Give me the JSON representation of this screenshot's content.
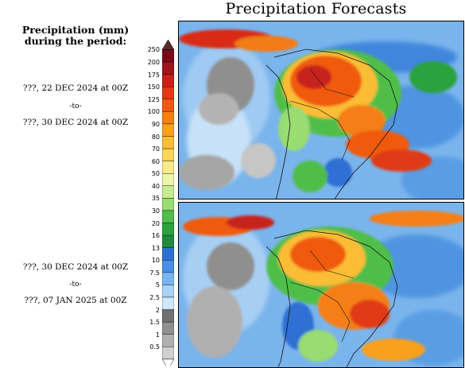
{
  "title": "Precipitation Forecasts",
  "legend": {
    "title_line1": "Precipitation (mm)",
    "title_line2": "during the period:",
    "ticks_upper": [
      "250",
      "200",
      "175",
      "150",
      "125",
      "100",
      "90",
      "80",
      "70",
      "60",
      "50",
      "40",
      "35",
      "30"
    ],
    "ticks_lower": [
      "20",
      "16",
      "13",
      "10",
      "7.5",
      "5",
      "2.5",
      "2",
      "1.5",
      "1",
      "0.5"
    ],
    "upper_colors": [
      "#7a0c18",
      "#a0141e",
      "#c8201c",
      "#e03a16",
      "#f05a10",
      "#f57f12",
      "#f9a01c",
      "#fbbd34",
      "#fcd457",
      "#fde98a",
      "#edf5a8",
      "#c6ec8e",
      "#98dc72"
    ],
    "mid_color": "#4fbe4a",
    "lower_colors": [
      "#2ba23e",
      "#1f8b3b",
      "#2d6fd4",
      "#4a90e8",
      "#78b4f2",
      "#a8d2f7",
      "#d0e8fb",
      "#707070",
      "#909090",
      "#b0b0b0",
      "#d0d0d0"
    ],
    "arrow_bottom_color": "#ffffff"
  },
  "period1": {
    "start": "???, 22 DEC 2024 at 00Z",
    "to": "-to-",
    "end": "???, 30 DEC 2024 at 00Z"
  },
  "period2": {
    "start": "???, 30 DEC 2024 at 00Z",
    "to": "-to-",
    "end": "???, 07 JAN 2025 at 00Z"
  }
}
